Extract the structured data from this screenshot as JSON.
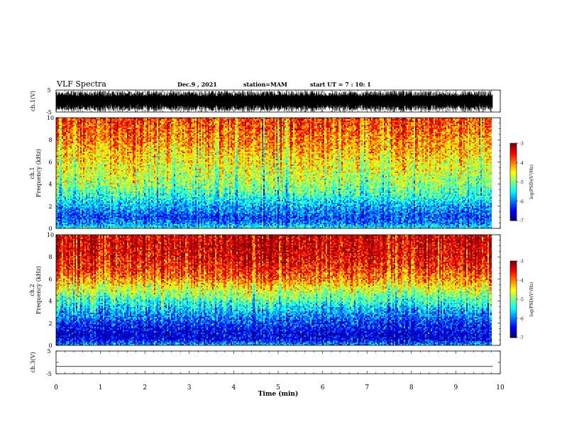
{
  "header": {
    "title": "VLF Spectra",
    "date": "Dec.9 , 2021",
    "station": "station=MAM",
    "start": "start UT = 7 : 10: 1"
  },
  "chart_data": [
    {
      "type": "line",
      "name": "ch1-waveform",
      "ylabel": "ch.1(V)",
      "ylim": [
        -5,
        5
      ],
      "yticks": [
        5,
        -5
      ],
      "x": [
        0,
        10
      ],
      "description_values": "dense black waveform, amplitude roughly -5 to 5 V"
    },
    {
      "type": "heatmap",
      "name": "ch1-spectrogram",
      "ylabel_line1": "ch.1",
      "ylabel_line2": "Frequency (kHz)",
      "ylim": [
        0,
        10
      ],
      "yticks": [
        0,
        2,
        4,
        6,
        8,
        10
      ],
      "xlim": [
        0,
        10
      ],
      "x_extent": 9.83,
      "colorbar": {
        "label": "log(PSD)(V²/Hz)",
        "ticks": [
          -3,
          -4,
          -5,
          -6,
          -7
        ],
        "range": [
          -7,
          -3
        ]
      },
      "mean_log_psd_by_frequency": [
        {
          "f": 0.0,
          "v": -5.4
        },
        {
          "f": 0.5,
          "v": -6.0
        },
        {
          "f": 1.0,
          "v": -6.2
        },
        {
          "f": 2.0,
          "v": -5.8
        },
        {
          "f": 3.0,
          "v": -5.3
        },
        {
          "f": 4.0,
          "v": -4.9
        },
        {
          "f": 5.0,
          "v": -4.6
        },
        {
          "f": 6.0,
          "v": -4.4
        },
        {
          "f": 7.0,
          "v": -4.2
        },
        {
          "f": 8.0,
          "v": -4.0
        },
        {
          "f": 9.0,
          "v": -3.8
        },
        {
          "f": 10.0,
          "v": -3.7
        }
      ]
    },
    {
      "type": "heatmap",
      "name": "ch2-spectrogram",
      "ylabel_line1": "ch.2",
      "ylabel_line2": "Frequency (kHz)",
      "ylim": [
        0,
        10
      ],
      "yticks": [
        0,
        2,
        4,
        6,
        8,
        10
      ],
      "xlim": [
        0,
        10
      ],
      "x_extent": 9.83,
      "colorbar": {
        "label": "log(PSD)(V²/Hz)",
        "ticks": [
          -3,
          -4,
          -5,
          -6,
          -7
        ],
        "range": [
          -7,
          -3
        ]
      },
      "mean_log_psd_by_frequency": [
        {
          "f": 0.0,
          "v": -5.8
        },
        {
          "f": 0.5,
          "v": -6.5
        },
        {
          "f": 1.0,
          "v": -6.6
        },
        {
          "f": 2.0,
          "v": -6.3
        },
        {
          "f": 3.0,
          "v": -5.8
        },
        {
          "f": 4.0,
          "v": -5.2
        },
        {
          "f": 5.0,
          "v": -4.6
        },
        {
          "f": 6.0,
          "v": -4.0
        },
        {
          "f": 7.0,
          "v": -3.6
        },
        {
          "f": 8.0,
          "v": -3.4
        },
        {
          "f": 9.0,
          "v": -3.3
        },
        {
          "f": 10.0,
          "v": -3.3
        }
      ]
    },
    {
      "type": "line",
      "name": "ch3-waveform",
      "ylabel": "ch.3(V)",
      "ylim": [
        -5,
        5
      ],
      "yticks": [
        5,
        0,
        -5
      ],
      "x": [
        0,
        9.83
      ],
      "y": [
        -1.8,
        -1.8
      ]
    }
  ],
  "xaxis": {
    "label": "Time (min)",
    "ticks": [
      "0",
      "1",
      "2",
      "3",
      "4",
      "5",
      "6",
      "7",
      "8",
      "9",
      "10"
    ],
    "range": [
      0,
      10
    ]
  }
}
